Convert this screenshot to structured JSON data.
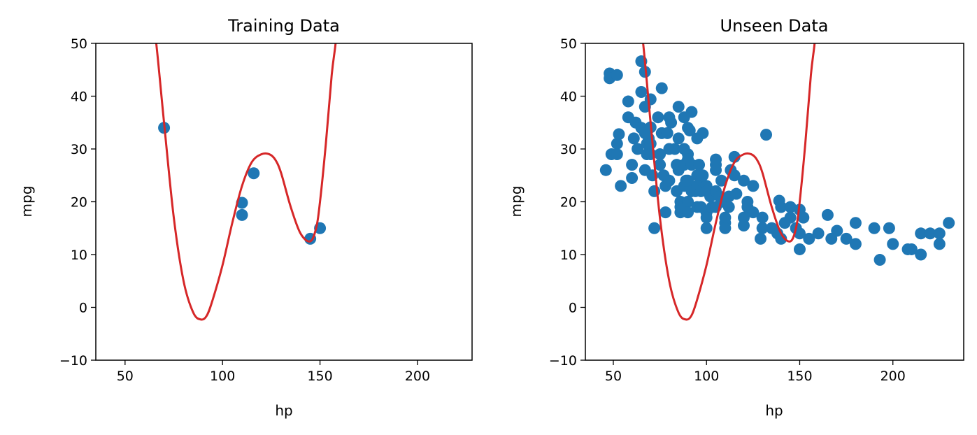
{
  "chart_data": [
    {
      "type": "scatter",
      "title": "Training Data",
      "xlabel": "hp",
      "ylabel": "mpg",
      "xlim": [
        35,
        228
      ],
      "ylim": [
        -10,
        50
      ],
      "xticks": [
        50,
        100,
        150,
        200
      ],
      "yticks": [
        -10,
        0,
        10,
        20,
        30,
        40,
        50
      ],
      "grid": false,
      "point_color": "#1f77b4",
      "line_color": "#d62728",
      "points": [
        [
          70,
          34
        ],
        [
          110,
          19.8
        ],
        [
          110,
          17.5
        ],
        [
          116,
          25.4
        ],
        [
          145,
          13
        ],
        [
          150,
          15
        ]
      ],
      "fit_curve": {
        "type": "line",
        "x": [
          63,
          66,
          70,
          75,
          80,
          85,
          89,
          92,
          95,
          100,
          105,
          110,
          115,
          120,
          124,
          127,
          130,
          135,
          140,
          145,
          148,
          150,
          153,
          156,
          158,
          160
        ],
        "y": [
          58,
          50,
          35,
          17,
          5,
          -1,
          -2.3,
          -1.5,
          1.5,
          8,
          16,
          23,
          27.5,
          29,
          29,
          28,
          25.5,
          19,
          14,
          12.5,
          15,
          20,
          31,
          44,
          50,
          58
        ]
      }
    },
    {
      "type": "scatter",
      "title": "Unseen Data",
      "xlabel": "hp",
      "ylabel": "mpg",
      "xlim": [
        35,
        238
      ],
      "ylim": [
        -10,
        50
      ],
      "xticks": [
        50,
        100,
        150,
        200
      ],
      "yticks": [
        -10,
        0,
        10,
        20,
        30,
        40,
        50
      ],
      "grid": false,
      "point_color": "#1f77b4",
      "line_color": "#d62728",
      "points": [
        [
          46,
          26
        ],
        [
          48,
          44.3
        ],
        [
          48,
          43.4
        ],
        [
          49,
          29
        ],
        [
          52,
          44
        ],
        [
          52,
          31
        ],
        [
          52,
          29
        ],
        [
          53,
          32.8
        ],
        [
          54,
          23
        ],
        [
          58,
          39
        ],
        [
          58,
          36
        ],
        [
          60,
          24.5
        ],
        [
          60,
          27
        ],
        [
          61,
          32
        ],
        [
          62,
          35
        ],
        [
          63,
          30
        ],
        [
          65,
          46.6
        ],
        [
          65,
          40.8
        ],
        [
          65,
          34
        ],
        [
          67,
          44.6
        ],
        [
          67,
          38
        ],
        [
          67,
          33
        ],
        [
          67,
          26
        ],
        [
          68,
          31
        ],
        [
          68,
          29
        ],
        [
          69,
          32
        ],
        [
          70,
          39.4
        ],
        [
          70,
          34.1
        ],
        [
          70,
          31
        ],
        [
          70,
          29
        ],
        [
          71,
          25
        ],
        [
          72,
          22
        ],
        [
          72,
          15
        ],
        [
          74,
          36
        ],
        [
          75,
          29
        ],
        [
          75,
          27
        ],
        [
          76,
          41.5
        ],
        [
          76,
          33
        ],
        [
          77,
          25
        ],
        [
          78,
          23
        ],
        [
          78,
          18
        ],
        [
          79,
          33
        ],
        [
          80,
          36
        ],
        [
          80,
          30
        ],
        [
          80,
          24
        ],
        [
          81,
          35
        ],
        [
          83,
          30
        ],
        [
          84,
          27
        ],
        [
          84,
          22
        ],
        [
          85,
          38
        ],
        [
          85,
          32
        ],
        [
          85,
          26
        ],
        [
          86,
          19
        ],
        [
          86,
          18
        ],
        [
          86,
          20
        ],
        [
          88,
          36
        ],
        [
          88,
          30
        ],
        [
          88,
          27
        ],
        [
          88,
          23
        ],
        [
          88,
          19
        ],
        [
          89,
          24
        ],
        [
          90,
          34
        ],
        [
          90,
          29
        ],
        [
          90,
          28
        ],
        [
          90,
          24
        ],
        [
          90,
          20
        ],
        [
          90,
          18
        ],
        [
          91,
          33.5
        ],
        [
          92,
          37
        ],
        [
          92,
          27
        ],
        [
          92,
          22
        ],
        [
          94,
          22
        ],
        [
          95,
          32
        ],
        [
          95,
          25
        ],
        [
          95,
          23
        ],
        [
          95,
          19
        ],
        [
          96,
          27
        ],
        [
          97,
          24
        ],
        [
          97,
          22
        ],
        [
          97,
          19
        ],
        [
          98,
          33
        ],
        [
          98,
          25
        ],
        [
          100,
          23
        ],
        [
          100,
          22
        ],
        [
          100,
          18
        ],
        [
          100,
          15
        ],
        [
          100,
          17
        ],
        [
          102,
          21
        ],
        [
          103,
          19
        ],
        [
          105,
          28
        ],
        [
          105,
          27
        ],
        [
          105,
          26
        ],
        [
          105,
          22
        ],
        [
          105,
          19
        ],
        [
          107,
          21
        ],
        [
          108,
          24
        ],
        [
          108,
          20
        ],
        [
          110,
          17
        ],
        [
          110,
          16
        ],
        [
          110,
          15
        ],
        [
          112,
          21
        ],
        [
          112,
          19
        ],
        [
          113,
          26
        ],
        [
          115,
          28.5
        ],
        [
          115,
          25
        ],
        [
          116,
          21.5
        ],
        [
          120,
          24
        ],
        [
          120,
          17
        ],
        [
          120,
          15.5
        ],
        [
          122,
          20
        ],
        [
          122,
          19
        ],
        [
          125,
          23
        ],
        [
          125,
          18
        ],
        [
          129,
          13
        ],
        [
          130,
          17
        ],
        [
          130,
          15
        ],
        [
          132,
          32.7
        ],
        [
          135,
          15
        ],
        [
          138,
          14
        ],
        [
          139,
          20.2
        ],
        [
          140,
          19
        ],
        [
          140,
          13
        ],
        [
          142,
          16
        ],
        [
          145,
          19
        ],
        [
          145,
          17
        ],
        [
          148,
          15
        ],
        [
          150,
          18.5
        ],
        [
          150,
          14
        ],
        [
          150,
          11
        ],
        [
          152,
          17
        ],
        [
          155,
          13
        ],
        [
          160,
          14
        ],
        [
          165,
          17.5
        ],
        [
          167,
          13
        ],
        [
          170,
          14.5
        ],
        [
          175,
          13
        ],
        [
          180,
          16
        ],
        [
          180,
          12
        ],
        [
          190,
          15
        ],
        [
          193,
          9
        ],
        [
          198,
          15
        ],
        [
          200,
          12
        ],
        [
          208,
          11
        ],
        [
          210,
          11
        ],
        [
          215,
          14
        ],
        [
          215,
          10
        ],
        [
          220,
          14
        ],
        [
          225,
          14
        ],
        [
          225,
          12
        ],
        [
          230,
          16
        ]
      ],
      "fit_curve": {
        "type": "line",
        "x": [
          63,
          66,
          70,
          75,
          80,
          85,
          89,
          92,
          95,
          100,
          105,
          110,
          115,
          120,
          124,
          127,
          130,
          135,
          140,
          145,
          148,
          150,
          153,
          156,
          158,
          160
        ],
        "y": [
          58,
          50,
          35,
          17,
          5,
          -1,
          -2.3,
          -1.5,
          1.5,
          8,
          16,
          23,
          27.5,
          29,
          29,
          28,
          25.5,
          19,
          14,
          12.5,
          15,
          20,
          31,
          44,
          50,
          58
        ]
      }
    }
  ]
}
